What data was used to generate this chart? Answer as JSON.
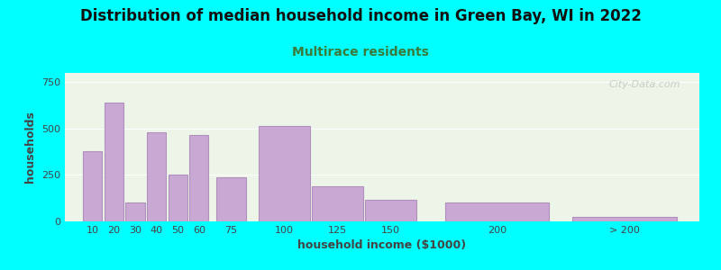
{
  "title": "Distribution of median household income in Green Bay, WI in 2022",
  "subtitle": "Multirace residents",
  "xlabel": "household income ($1000)",
  "ylabel": "households",
  "background_color": "#00FFFF",
  "plot_bg_color": "#edf5e8",
  "bar_color": "#c9a8d4",
  "bar_edge_color": "#b090be",
  "categories": [
    "10",
    "20",
    "30",
    "40",
    "50",
    "60",
    "75",
    "100",
    "125",
    "150",
    "200",
    "> 200"
  ],
  "values": [
    380,
    640,
    100,
    480,
    250,
    465,
    240,
    515,
    190,
    115,
    100,
    25
  ],
  "ylim": [
    0,
    800
  ],
  "yticks": [
    0,
    250,
    500,
    750
  ],
  "title_fontsize": 12,
  "subtitle_fontsize": 10,
  "axis_label_fontsize": 9,
  "tick_fontsize": 8,
  "title_color": "#111111",
  "subtitle_color": "#3a7a3a",
  "axis_label_color": "#444444",
  "watermark_text": "City-Data.com",
  "bar_widths": [
    9,
    9,
    9,
    9,
    9,
    9,
    14,
    24,
    24,
    24,
    49,
    49
  ],
  "bar_positions": [
    10,
    20,
    30,
    40,
    50,
    60,
    75,
    100,
    125,
    150,
    200,
    260
  ],
  "xlim": [
    -3,
    295
  ]
}
